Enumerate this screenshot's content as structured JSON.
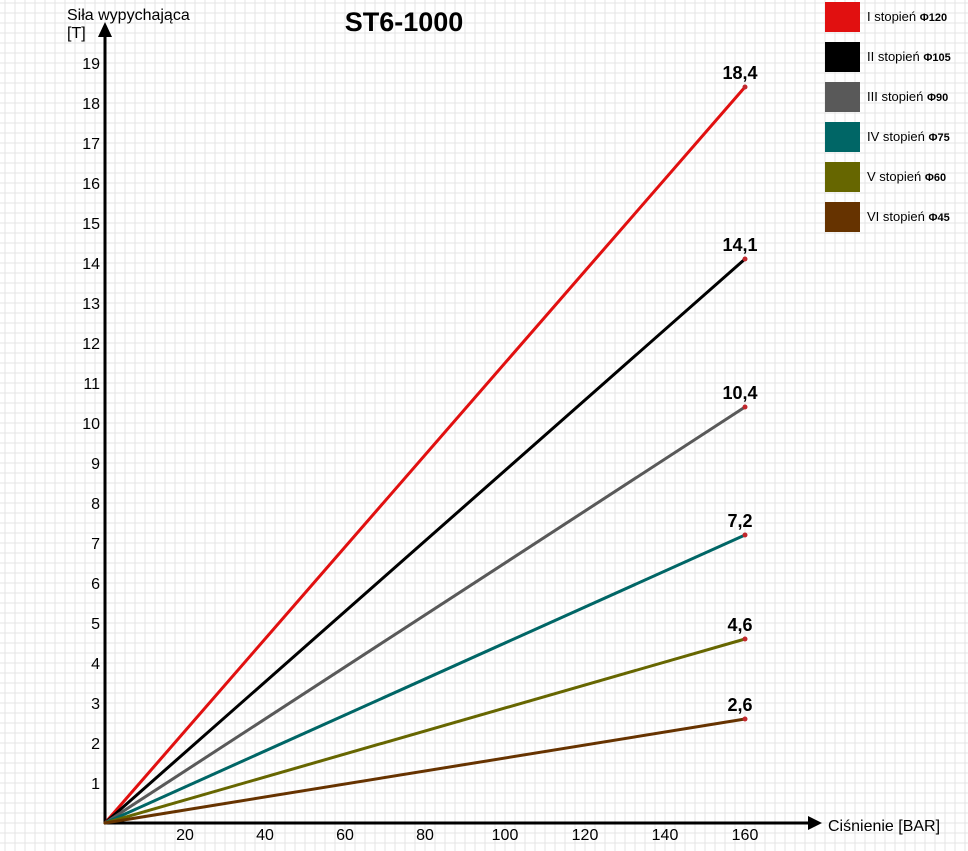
{
  "chart_data": {
    "type": "line",
    "title": "ST6-1000",
    "ylabel_line1": "Siła wypychająca",
    "ylabel_line2": "[T]",
    "xlabel": "Ciśnienie [BAR]",
    "xlim": [
      0,
      160
    ],
    "ylim": [
      0,
      19
    ],
    "xticks": [
      20,
      40,
      60,
      80,
      100,
      120,
      140,
      160
    ],
    "yticks": [
      1,
      2,
      3,
      4,
      5,
      6,
      7,
      8,
      9,
      10,
      11,
      12,
      13,
      14,
      15,
      16,
      17,
      18,
      19
    ],
    "grid": true,
    "legend_position": "top-right",
    "series": [
      {
        "name": "I stopień",
        "diameter": "Φ120",
        "color": "#e11010",
        "x": [
          0,
          160
        ],
        "y": [
          0,
          18.4
        ],
        "end_label": "18,4"
      },
      {
        "name": "II stopień",
        "diameter": "Φ105",
        "color": "#000000",
        "x": [
          0,
          160
        ],
        "y": [
          0,
          14.1
        ],
        "end_label": "14,1"
      },
      {
        "name": "III stopień",
        "diameter": "Φ90",
        "color": "#595959",
        "x": [
          0,
          160
        ],
        "y": [
          0,
          10.4
        ],
        "end_label": "10,4"
      },
      {
        "name": "IV stopień",
        "diameter": "Φ75",
        "color": "#006666",
        "x": [
          0,
          160
        ],
        "y": [
          0,
          7.2
        ],
        "end_label": "7,2"
      },
      {
        "name": "V stopień",
        "diameter": "Φ60",
        "color": "#666600",
        "x": [
          0,
          160
        ],
        "y": [
          0,
          4.6
        ],
        "end_label": "4,6"
      },
      {
        "name": "VI stopień",
        "diameter": "Φ45",
        "color": "#663300",
        "x": [
          0,
          160
        ],
        "y": [
          0,
          2.6
        ],
        "end_label": "2,6"
      }
    ],
    "endpoint_marker_color": "#c0282d",
    "grid_color": "#e4e4e4",
    "axis_color": "#000000"
  }
}
